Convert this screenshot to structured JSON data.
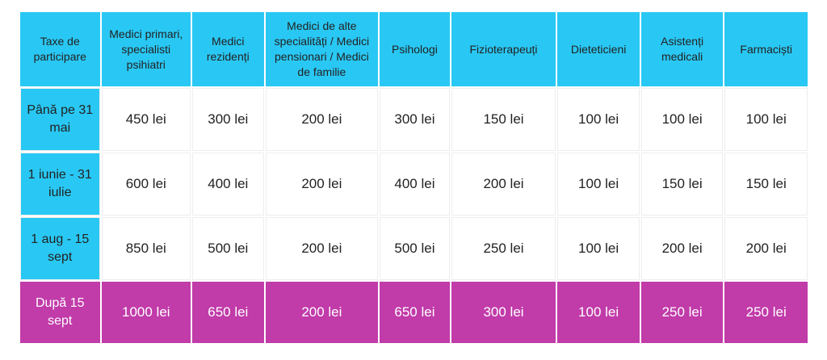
{
  "table": {
    "headers": [
      "Taxe de participare",
      "Medici primari, specialisti psihiatri",
      "Medici rezidenți",
      "Medici de alte specialități / Medici pensionari / Medici de familie",
      "Psihologi",
      "Fizioterapeuți",
      "Dieteticieni",
      "Asistenți medicali",
      "Farmaciști"
    ],
    "rows": [
      [
        "Până pe 31 mai",
        "450 lei",
        "300 lei",
        "200 lei",
        "300 lei",
        "150 lei",
        "100 lei",
        "100 lei",
        "100 lei"
      ],
      [
        "1 iunie - 31 iulie",
        "600 lei",
        "400 lei",
        "200 lei",
        "400 lei",
        "200 lei",
        "100 lei",
        "150 lei",
        "150 lei"
      ],
      [
        "1 aug - 15 sept",
        "850 lei",
        "500 lei",
        "200 lei",
        "500 lei",
        "250 lei",
        "100 lei",
        "200 lei",
        "200 lei"
      ],
      [
        "După 15 sept",
        "1000 lei",
        "650 lei",
        "200 lei",
        "650 lei",
        "300 lei",
        "100 lei",
        "250 lei",
        "250 lei"
      ]
    ]
  },
  "colors": {
    "header_bg": "#29c8f4",
    "highlight_bg": "#c13ba9"
  }
}
